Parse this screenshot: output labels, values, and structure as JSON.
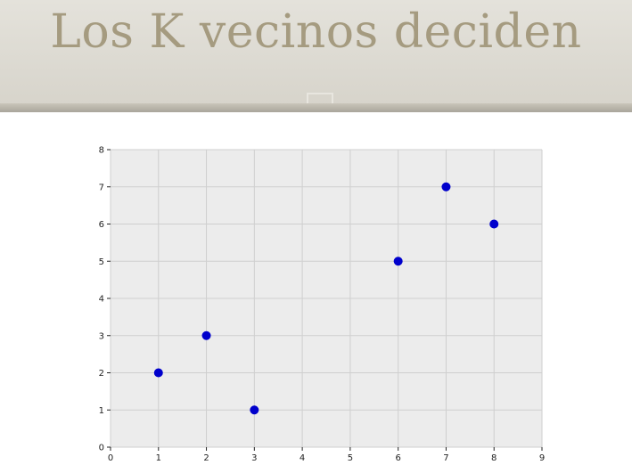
{
  "slide": {
    "title": "Los K vecinos deciden"
  },
  "chart_data": {
    "type": "scatter",
    "x": [
      1,
      2,
      3,
      6,
      7,
      8
    ],
    "y": [
      2,
      3,
      1,
      5,
      7,
      6
    ],
    "xlim": [
      0,
      9
    ],
    "ylim": [
      0,
      8
    ],
    "xticks": [
      "0",
      "1",
      "2",
      "3",
      "4",
      "5",
      "6",
      "7",
      "8",
      "9"
    ],
    "yticks": [
      "0",
      "1",
      "2",
      "3",
      "4",
      "5",
      "6",
      "7",
      "8"
    ],
    "grid": true,
    "marker_color": "#0000cc",
    "plot_background": "#ececec",
    "grid_color": "#cfcfcf"
  }
}
